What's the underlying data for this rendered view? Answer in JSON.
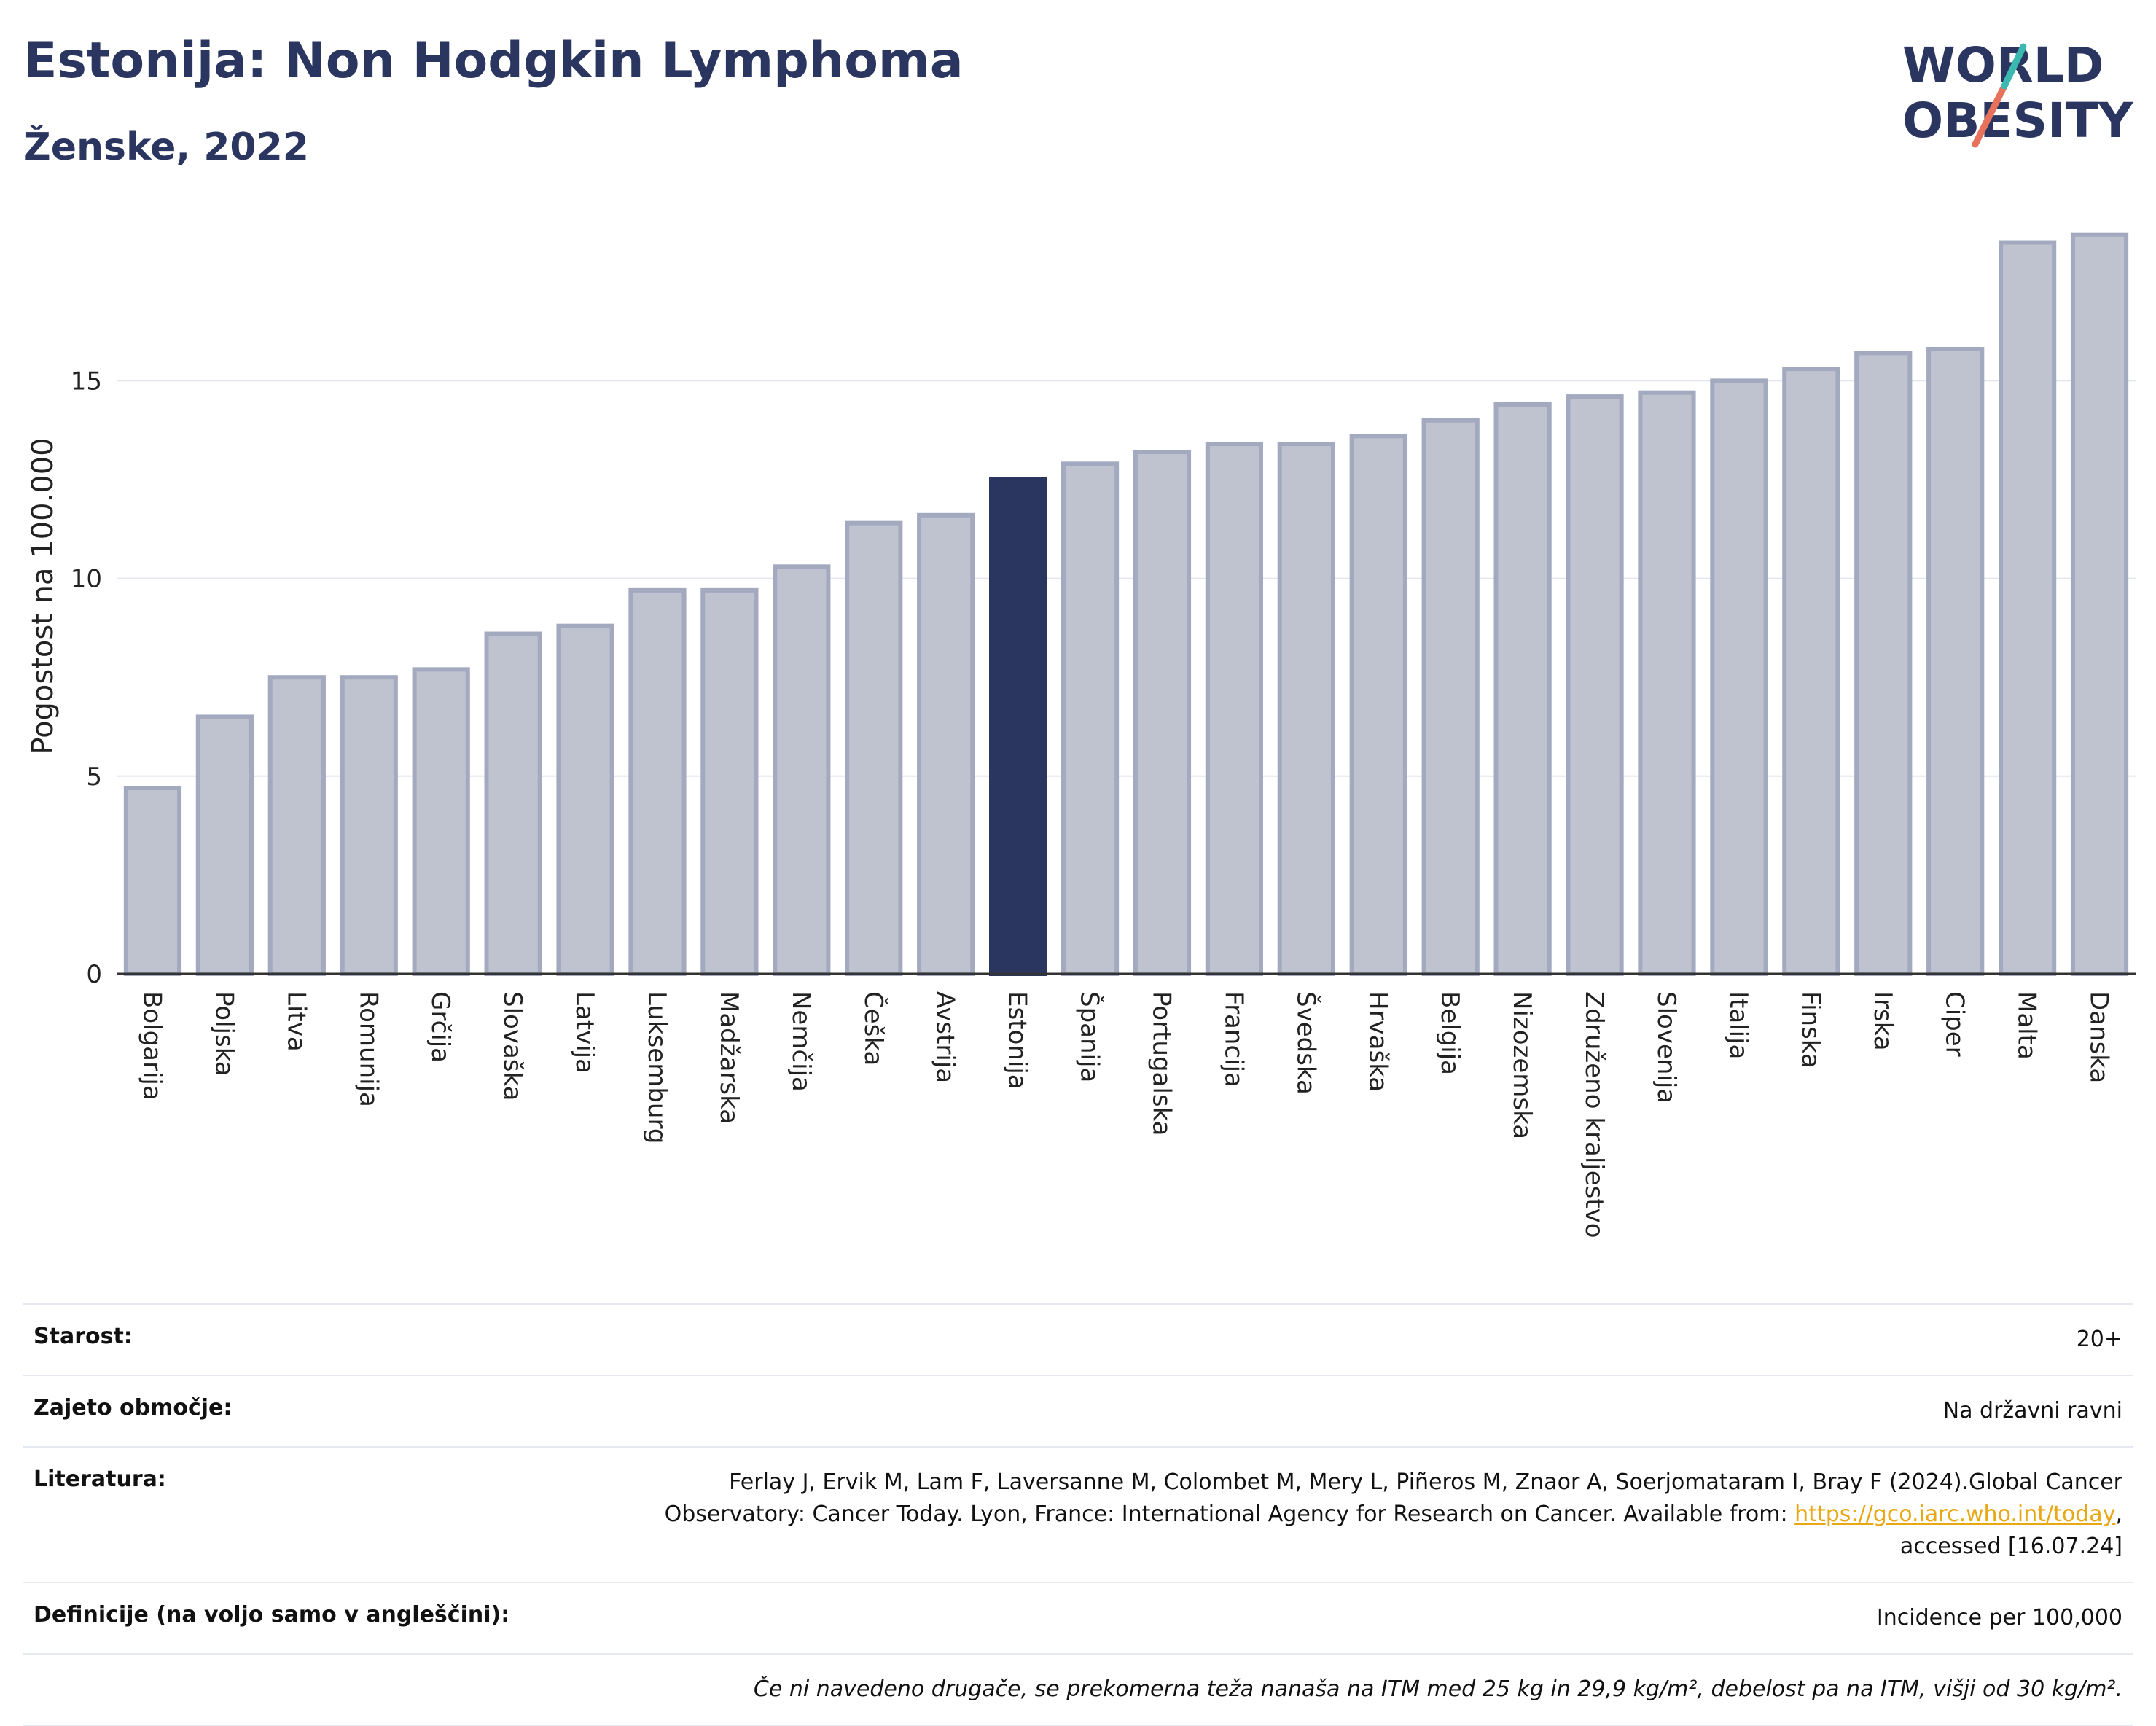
{
  "title": "Estonija: Non Hodgkin Lymphoma",
  "subtitle": "Ženske, 2022",
  "logo": {
    "line1": "WORLD",
    "line2": "OBESITY"
  },
  "chart_data": {
    "type": "bar",
    "ylabel": "Pogostost na 100.000",
    "ylim": [
      0,
      19.1
    ],
    "yticks": [
      0,
      5,
      10,
      15
    ],
    "grid": true,
    "highlight": "Estonija",
    "colors": {
      "bar": "#bfc3d0",
      "bar_edge": "#a3a9bf",
      "highlight": "#2a3560"
    },
    "categories": [
      "Bolgarija",
      "Poljska",
      "Litva",
      "Romunija",
      "Grčija",
      "Slovaška",
      "Latvija",
      "Luksemburg",
      "Madžarska",
      "Nemčija",
      "Češka",
      "Avstrija",
      "Estonija",
      "Španija",
      "Portugalska",
      "Francija",
      "Švedska",
      "Hrvaška",
      "Belgija",
      "Nizozemska",
      "Združeno kraljestvo",
      "Slovenija",
      "Italija",
      "Finska",
      "Irska",
      "Ciper",
      "Malta",
      "Danska"
    ],
    "values": [
      4.7,
      6.5,
      7.5,
      7.5,
      7.7,
      8.6,
      8.8,
      9.7,
      9.7,
      10.3,
      11.4,
      11.6,
      12.5,
      12.9,
      13.2,
      13.4,
      13.4,
      13.6,
      14.0,
      14.4,
      14.6,
      14.7,
      15.0,
      15.3,
      15.7,
      15.8,
      18.5,
      18.7
    ]
  },
  "meta": {
    "age_label": "Starost:",
    "age_value": "20+",
    "coverage_label": "Zajeto območje:",
    "coverage_value": "Na državni ravni",
    "ref_label": "Literatura:",
    "ref_text_1": "Ferlay J, Ervik M, Lam F, Laversanne M, Colombet M, Mery L, Piñeros M, Znaor A, Soerjomataram I, Bray F (2024).Global Cancer Observatory: Cancer Today. Lyon, France: International Agency for Research on Cancer. Available from: ",
    "ref_link": "https://gco.iarc.who.int/today",
    "ref_text_2": ", accessed [16.07.24]",
    "def_label": "Definicije (na voljo samo v angleščini):",
    "def_value": "Incidence per 100,000",
    "note": "Če ni navedeno drugače, se prekomerna teža nanaša na ITM med 25 kg in 29,9 kg/m², debelost pa na ITM, višji od 30 kg/m²."
  }
}
